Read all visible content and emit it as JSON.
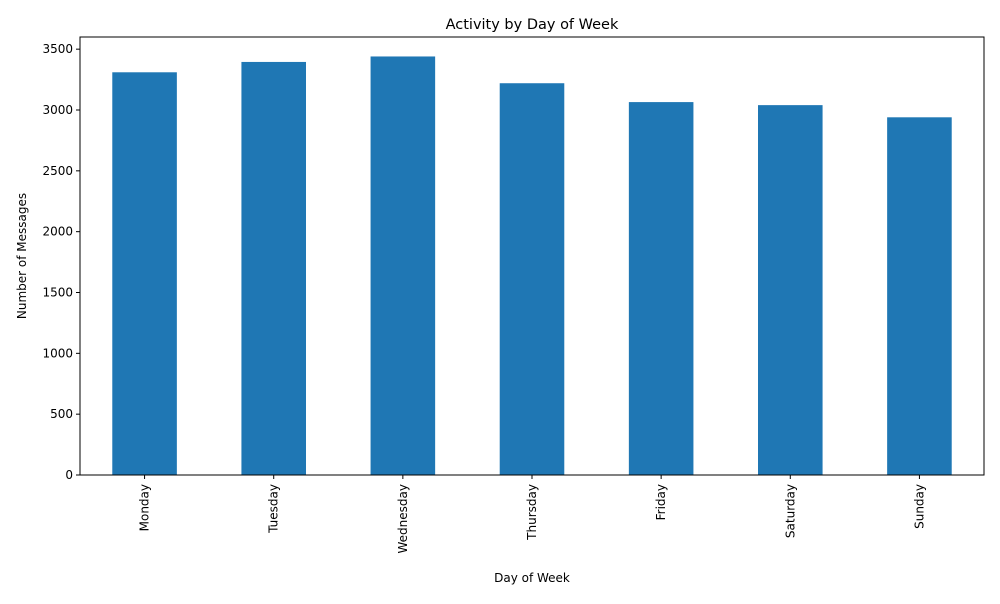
{
  "chart_data": {
    "type": "bar",
    "title": "Activity by Day of Week",
    "xlabel": "Day of Week",
    "ylabel": "Number of Messages",
    "categories": [
      "Monday",
      "Tuesday",
      "Wednesday",
      "Thursday",
      "Friday",
      "Saturday",
      "Sunday"
    ],
    "values": [
      3310,
      3395,
      3440,
      3220,
      3065,
      3040,
      2940
    ],
    "ylim": [
      0,
      3600
    ],
    "yticks": [
      0,
      500,
      1000,
      1500,
      2000,
      2500,
      3000,
      3500
    ],
    "grid": false,
    "legend": "none",
    "bar_color": "#1f77b4"
  }
}
